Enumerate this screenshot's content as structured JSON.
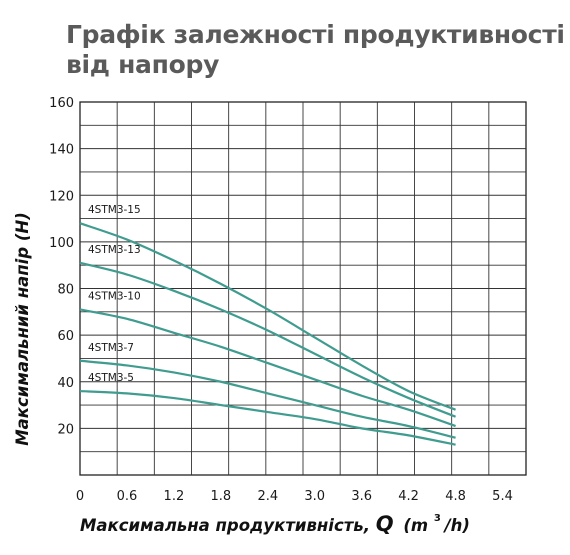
{
  "page": {
    "title": "Графік залежності продуктивності від напору"
  },
  "chart_data": {
    "type": "line",
    "xlabel": "Максимальна продуктивність,",
    "xlabel_symbol": "Q",
    "xlabel_unit_prefix": "(m",
    "xlabel_unit_sup": "3",
    "xlabel_unit_suffix": "/h)",
    "ylabel": "Максимальний напір (Н)",
    "xlim": [
      0,
      5.7
    ],
    "ylim": [
      0,
      160
    ],
    "x_ticks": [
      0,
      0.6,
      1.2,
      1.8,
      2.4,
      3.0,
      3.6,
      4.2,
      4.8,
      5.4
    ],
    "x_tick_labels": [
      "0",
      "0.6",
      "1.2",
      "1.8",
      "2.4",
      "3.0",
      "3.6",
      "4.2",
      "4.8",
      "5.4"
    ],
    "y_ticks": [
      20,
      40,
      60,
      80,
      100,
      120,
      140,
      160
    ],
    "y_tick_labels": [
      "20",
      "40",
      "60",
      "80",
      "100",
      "120",
      "140",
      "160"
    ],
    "grid": true,
    "line_color": "#3f9c8f",
    "series": [
      {
        "name": "4STM3-15",
        "x": [
          0,
          0.6,
          1.2,
          1.8,
          2.4,
          3.0,
          3.6,
          4.2,
          4.8
        ],
        "values": [
          108,
          101,
          92,
          82,
          71,
          59,
          47,
          36,
          28
        ]
      },
      {
        "name": "4STM3-13",
        "x": [
          0,
          0.6,
          1.2,
          1.8,
          2.4,
          3.0,
          3.6,
          4.2,
          4.8
        ],
        "values": [
          91,
          86,
          79,
          71,
          62,
          52,
          42,
          33,
          25
        ]
      },
      {
        "name": "4STM3-10",
        "x": [
          0,
          0.6,
          1.2,
          1.8,
          2.4,
          3.0,
          3.6,
          4.2,
          4.8
        ],
        "values": [
          71,
          67,
          61,
          55,
          48,
          41,
          34,
          28,
          21
        ]
      },
      {
        "name": "4STM3-7",
        "x": [
          0,
          0.6,
          1.2,
          1.8,
          2.4,
          3.0,
          3.6,
          4.2,
          4.8
        ],
        "values": [
          49,
          47,
          44,
          40,
          35,
          30,
          25,
          21,
          16
        ]
      },
      {
        "name": "4STM3-5",
        "x": [
          0,
          0.6,
          1.2,
          1.8,
          2.4,
          3.0,
          3.6,
          4.2,
          4.8
        ],
        "values": [
          36,
          35,
          33,
          30,
          27,
          24,
          20,
          17,
          13
        ]
      }
    ]
  }
}
